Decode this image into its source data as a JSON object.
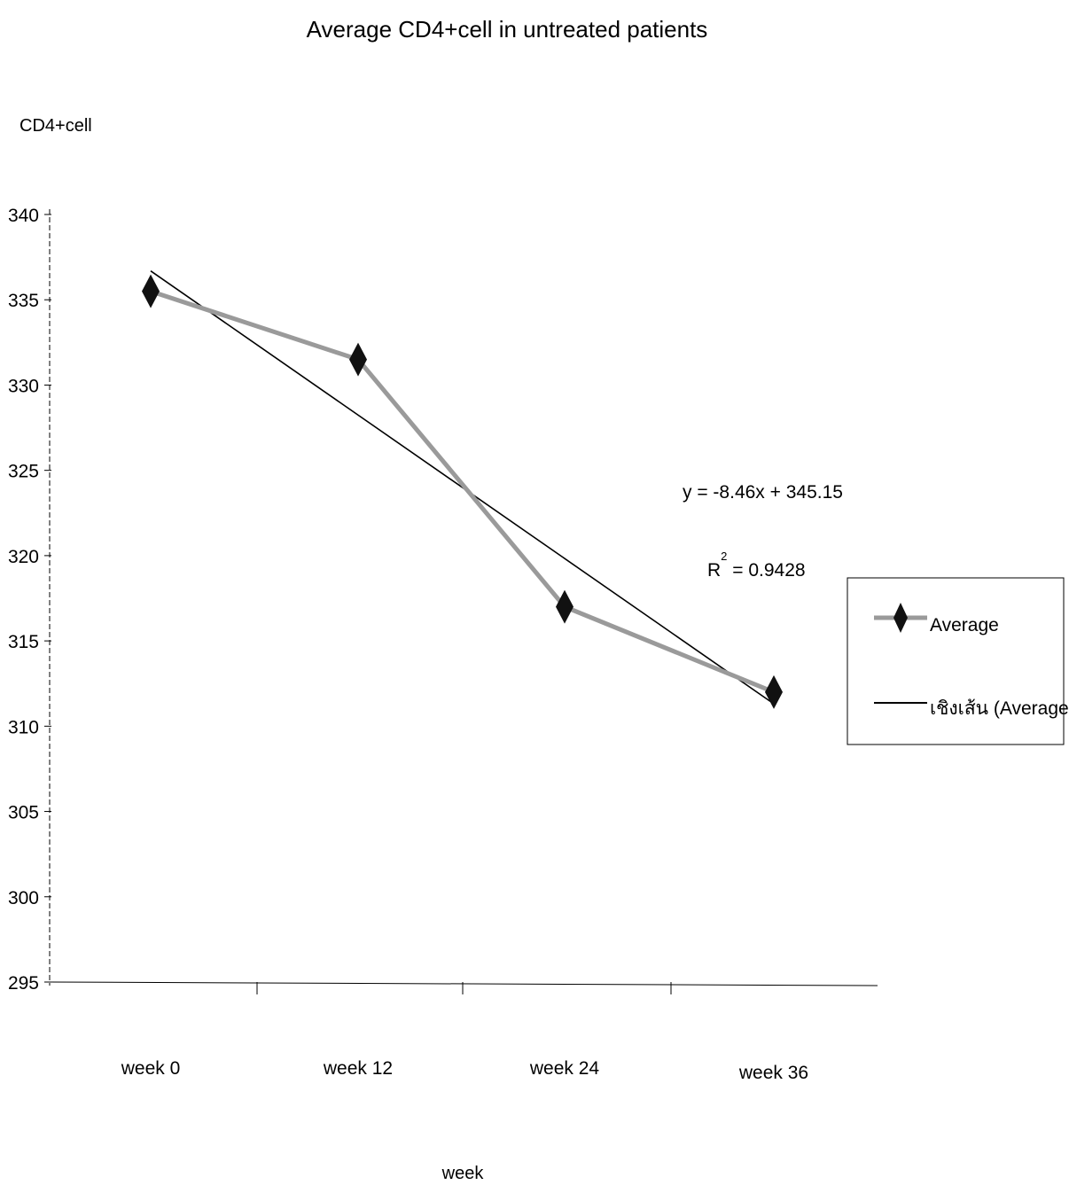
{
  "chart_data": {
    "type": "line",
    "title": "Average CD4+cell in untreated patients",
    "ylabel": "CD4+cell",
    "xlabel": "week",
    "categories": [
      "week 0",
      "week 12",
      "week 24",
      "week 36"
    ],
    "ylim": [
      295,
      340
    ],
    "yticks": [
      340,
      335,
      330,
      325,
      320,
      315,
      310,
      305,
      300,
      295
    ],
    "series": [
      {
        "name": "Average",
        "values": [
          335.5,
          331.5,
          317,
          312
        ],
        "color": "#9a9a9a",
        "marker": "diamond"
      }
    ],
    "trendline": {
      "name": "เชิงเส้น (Average)",
      "slope": -8.46,
      "intercept": 345.15,
      "color": "#000000",
      "equation_label": "y = -8.46x + 345.15",
      "r2_label": "R",
      "r2_sup": "2",
      "r2_value": " = 0.9428"
    },
    "legend_position": "right",
    "grid": false
  }
}
